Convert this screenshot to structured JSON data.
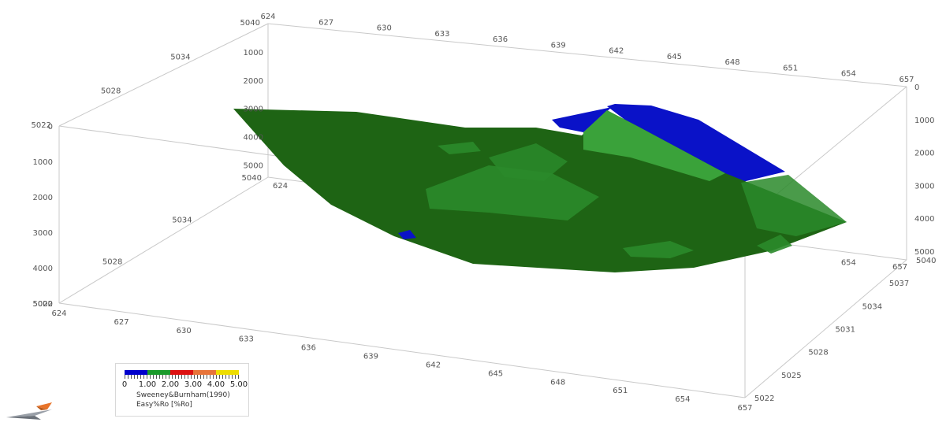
{
  "chart_data": {
    "type": "surface3d",
    "title": "",
    "x_axis": {
      "ticks": [
        624,
        627,
        630,
        633,
        636,
        639,
        642,
        645,
        648,
        651,
        654,
        657
      ],
      "range": [
        624,
        657
      ]
    },
    "y_axis": {
      "ticks": [
        5022,
        5028,
        5034,
        5040
      ],
      "range": [
        5022,
        5040
      ]
    },
    "y_axis_right": {
      "ticks": [
        5022,
        5025,
        5028,
        5031,
        5034,
        5037,
        5040
      ],
      "range": [
        5022,
        5040
      ]
    },
    "z_axis": {
      "ticks": [
        0,
        1000,
        2000,
        3000,
        4000,
        5000
      ],
      "range": [
        0,
        5000
      ],
      "inverted": true
    },
    "surface": {
      "dominant_value_range": [
        0.7,
        1.3
      ],
      "minor_value_range": [
        0,
        0.7
      ],
      "colors": {
        "dark_green": "#1e6414",
        "green": "#2a8a2a",
        "light_green": "#3aa23a",
        "blue": "#0a12c8"
      }
    },
    "legend": {
      "min": 0,
      "max": 5.0,
      "labels": [
        "0",
        "1.00",
        "2.00",
        "3.00",
        "4.00",
        "5.00"
      ],
      "colors": [
        "#0000cc",
        "#1a9a2a",
        "#dd1111",
        "#e8743a",
        "#eedd00"
      ],
      "line1": "Sweeney&Burnham(1990)",
      "line2": "Easy%Ro [%Ro]"
    }
  }
}
